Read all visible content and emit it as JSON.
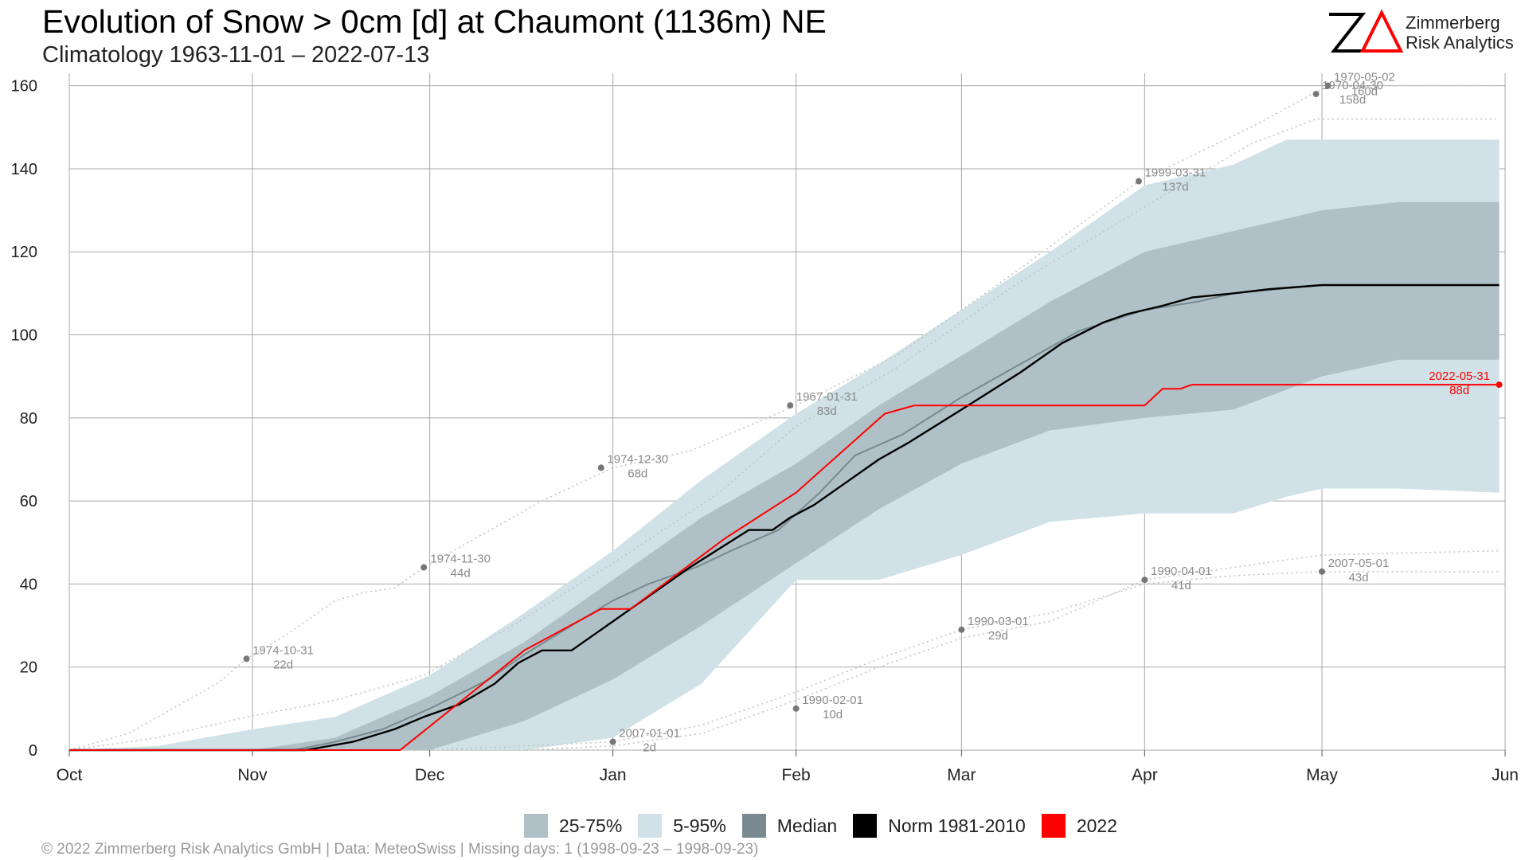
{
  "header": {
    "title": "Evolution of Snow > 0cm [d] at Chaumont (1136m) NE",
    "subtitle": "Climatology 1963-11-01 – 2022-07-13"
  },
  "logo": {
    "mark": "ZΔ",
    "line1": "Zimmerberg",
    "line2": "Risk Analytics",
    "accent_color": "#ff0000"
  },
  "legend": {
    "items": [
      {
        "label": "25-75%",
        "color": "#afc0c6"
      },
      {
        "label": "5-95%",
        "color": "#d0e2e8"
      },
      {
        "label": "Median",
        "color": "#788a90"
      },
      {
        "label": "Norm 1981-2010",
        "color": "#000000"
      },
      {
        "label": "2022",
        "color": "#ff0000"
      }
    ]
  },
  "footer": {
    "text": "©  2022 Zimmerberg Risk Analytics GmbH | Data: MeteoSwiss | Missing days: 1 (1998-09-23 – 1998-09-23)"
  },
  "chart_data": {
    "type": "area",
    "title": "Evolution of Snow > 0cm [d] at Chaumont (1136m) NE",
    "subtitle": "Climatology 1963-11-01 – 2022-07-13",
    "xlabel": "",
    "ylabel": "",
    "x_ticks": [
      {
        "label": "Oct",
        "day": 0
      },
      {
        "label": "Nov",
        "day": 31
      },
      {
        "label": "Dec",
        "day": 61
      },
      {
        "label": "Jan",
        "day": 92
      },
      {
        "label": "Feb",
        "day": 123
      },
      {
        "label": "Mar",
        "day": 151
      },
      {
        "label": "Apr",
        "day": 182
      },
      {
        "label": "May",
        "day": 212
      },
      {
        "label": "Jun",
        "day": 243
      }
    ],
    "xlim": [
      0,
      243
    ],
    "y_ticks": [
      0,
      20,
      40,
      60,
      80,
      100,
      120,
      140,
      160
    ],
    "ylim": [
      0,
      163
    ],
    "grid": true,
    "legend_position": "bottom",
    "colors": {
      "p5_95": "#d0e2e8",
      "p25_75": "#afc0c6",
      "median": "#788a90",
      "norm": "#000000",
      "y2022": "#ff0000",
      "extreme_points": "#777777",
      "dotted_years": "#c4c4c4"
    },
    "band_5_95": {
      "days": [
        0,
        15,
        31,
        45,
        61,
        77,
        92,
        107,
        123,
        137,
        151,
        166,
        182,
        197,
        206,
        212,
        225,
        242
      ],
      "lower": [
        0,
        0,
        0,
        0,
        0,
        0,
        3,
        16,
        41,
        41,
        47,
        55,
        57,
        57,
        61,
        63,
        63,
        62
      ],
      "upper": [
        0,
        1,
        5,
        8,
        18,
        33,
        48,
        65,
        81,
        93,
        106,
        120,
        136,
        141,
        147,
        147,
        147,
        147
      ]
    },
    "band_25_75": {
      "days": [
        0,
        20,
        31,
        45,
        61,
        77,
        92,
        107,
        123,
        137,
        151,
        166,
        182,
        197,
        212,
        225,
        242
      ],
      "lower": [
        0,
        0,
        0,
        0,
        0,
        7,
        17,
        30,
        45,
        58,
        69,
        77,
        80,
        82,
        90,
        94,
        94
      ],
      "upper": [
        0,
        0,
        0,
        3,
        13,
        26,
        41,
        56,
        69,
        83,
        95,
        108,
        120,
        125,
        130,
        132,
        132
      ]
    },
    "series": [
      {
        "name": "Median",
        "days": [
          0,
          38,
          45,
          53,
          61,
          71,
          77,
          85,
          92,
          98,
          106,
          112,
          120,
          127,
          133,
          141,
          151,
          161,
          171,
          182,
          191,
          197,
          212,
          242
        ],
        "values": [
          0,
          0,
          2,
          5,
          10,
          17,
          23,
          30,
          36,
          40,
          44,
          48,
          53,
          62,
          71,
          76,
          85,
          93,
          101,
          106,
          108,
          110,
          112,
          112
        ]
      },
      {
        "name": "Norm 1981-2010",
        "days": [
          0,
          40,
          48,
          55,
          60,
          66,
          72,
          76,
          80,
          85,
          90,
          95,
          105,
          115,
          119,
          122,
          126,
          131,
          137,
          142,
          151,
          161,
          168,
          175,
          179,
          185,
          190,
          197,
          203,
          212,
          242
        ],
        "values": [
          0,
          0,
          2,
          5,
          8,
          11,
          16,
          21,
          24,
          24,
          29,
          34,
          44,
          53,
          53,
          56,
          59,
          64,
          70,
          74,
          82,
          91,
          98,
          103,
          105,
          107,
          109,
          110,
          111,
          112,
          112
        ]
      },
      {
        "name": "2022",
        "days": [
          0,
          56,
          70,
          77,
          90,
          95,
          111,
          123,
          138,
          143,
          145,
          151,
          166,
          182,
          185,
          188,
          190,
          242
        ],
        "values": [
          0,
          0,
          16,
          24,
          34,
          34,
          51,
          62,
          81,
          83,
          83,
          83,
          83,
          83,
          87,
          87,
          88,
          88
        ]
      }
    ],
    "annotations": [
      {
        "date": "1974-10-31",
        "value": "22d",
        "day": 30,
        "y": 22
      },
      {
        "date": "1974-11-30",
        "value": "44d",
        "day": 60,
        "y": 44
      },
      {
        "date": "1974-12-30",
        "value": "68d",
        "day": 90,
        "y": 68
      },
      {
        "date": "1967-01-31",
        "value": "83d",
        "day": 122,
        "y": 83
      },
      {
        "date": "1999-03-31",
        "value": "137d",
        "day": 181,
        "y": 137
      },
      {
        "date": "1970-04-30",
        "value": "158d",
        "day": 211,
        "y": 158
      },
      {
        "date": "1970-05-02",
        "value": "160d",
        "day": 213,
        "y": 160
      },
      {
        "date": "2007-01-01",
        "value": "2d",
        "day": 92,
        "y": 2
      },
      {
        "date": "1990-02-01",
        "value": "10d",
        "day": 123,
        "y": 10
      },
      {
        "date": "1990-03-01",
        "value": "29d",
        "day": 151,
        "y": 29
      },
      {
        "date": "1990-04-01",
        "value": "41d",
        "day": 182,
        "y": 41
      },
      {
        "date": "2007-05-01",
        "value": "43d",
        "day": 212,
        "y": 43
      },
      {
        "date": "2022-05-31",
        "value": "88d",
        "day": 242,
        "y": 88,
        "highlight": true
      }
    ],
    "dotted_years": [
      {
        "days": [
          0,
          10,
          15,
          20,
          25,
          30,
          37,
          45,
          50,
          55,
          60,
          65,
          70,
          80,
          92,
          105,
          123,
          140,
          160,
          181,
          200,
          213,
          242
        ],
        "values": [
          0,
          4,
          8,
          12,
          16,
          22,
          28,
          36,
          38,
          39,
          44,
          48,
          52,
          60,
          68,
          72,
          83,
          95,
          115,
          137,
          150,
          160,
          160
        ]
      },
      {
        "days": [
          0,
          15,
          30,
          45,
          60,
          75,
          92,
          110,
          123,
          140,
          160,
          181,
          200,
          211,
          242
        ],
        "values": [
          0,
          3,
          8,
          12,
          18,
          30,
          45,
          62,
          78,
          92,
          112,
          130,
          146,
          152,
          152
        ]
      },
      {
        "days": [
          0,
          45,
          61,
          77,
          92,
          107,
          123,
          137,
          151,
          166,
          182,
          197,
          212,
          242
        ],
        "values": [
          0,
          0,
          0,
          1,
          2,
          6,
          14,
          22,
          29,
          33,
          40,
          42,
          43,
          43
        ]
      },
      {
        "days": [
          0,
          61,
          77,
          92,
          107,
          123,
          137,
          151,
          166,
          182,
          197,
          212,
          242
        ],
        "values": [
          0,
          0,
          0,
          1,
          4,
          12,
          20,
          27,
          31,
          41,
          44,
          47,
          48
        ]
      }
    ]
  }
}
